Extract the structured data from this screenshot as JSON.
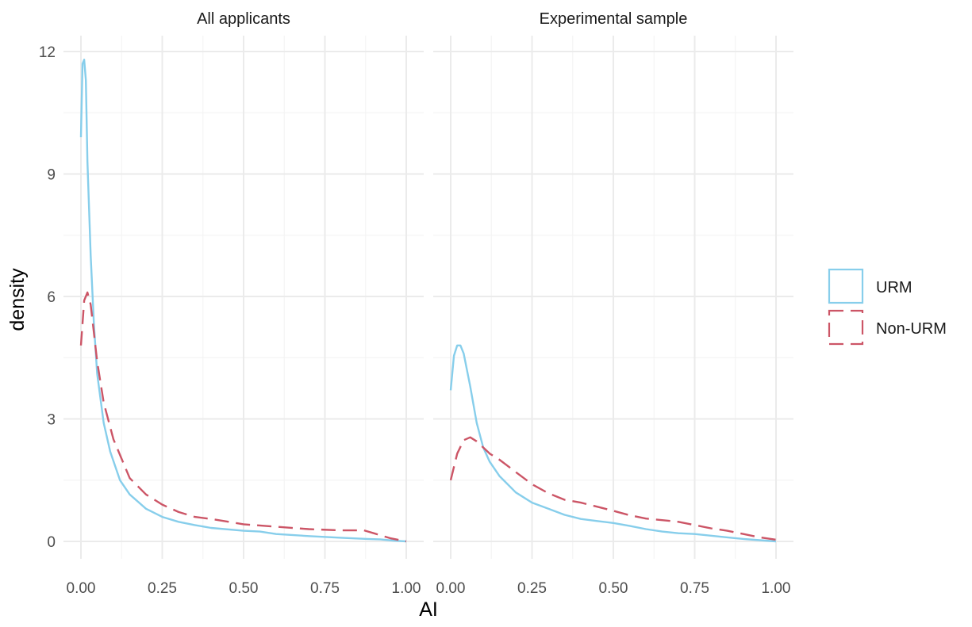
{
  "chart_data": {
    "type": "line",
    "xlabel": "AI",
    "ylabel": "density",
    "xlim": [
      0,
      1
    ],
    "ylim": [
      0,
      12
    ],
    "x_ticks": [
      "0.00",
      "0.25",
      "0.50",
      "0.75",
      "1.00"
    ],
    "y_ticks": [
      "0",
      "3",
      "6",
      "9",
      "12"
    ],
    "grid": true,
    "legend_position": "right",
    "legend": [
      {
        "name": "URM",
        "color": "#87CEEB",
        "dash": "solid"
      },
      {
        "name": "Non-URM",
        "color": "#CC5566",
        "dash": "dashed"
      }
    ],
    "panels": [
      {
        "title": "All applicants",
        "series": [
          {
            "name": "URM",
            "x": [
              0.0,
              0.005,
              0.01,
              0.015,
              0.02,
              0.03,
              0.04,
              0.05,
              0.07,
              0.09,
              0.12,
              0.15,
              0.2,
              0.25,
              0.3,
              0.35,
              0.4,
              0.5,
              0.55,
              0.6,
              0.7,
              0.8,
              0.88,
              0.92,
              0.96,
              1.0
            ],
            "y": [
              9.9,
              11.7,
              11.8,
              11.3,
              9.3,
              7.0,
              5.3,
              4.1,
              2.9,
              2.2,
              1.5,
              1.15,
              0.8,
              0.6,
              0.48,
              0.4,
              0.33,
              0.26,
              0.24,
              0.18,
              0.13,
              0.09,
              0.06,
              0.05,
              0.02,
              0.0
            ]
          },
          {
            "name": "Non-URM",
            "x": [
              0.0,
              0.01,
              0.02,
              0.03,
              0.04,
              0.05,
              0.07,
              0.1,
              0.15,
              0.2,
              0.25,
              0.3,
              0.35,
              0.4,
              0.5,
              0.6,
              0.7,
              0.8,
              0.87,
              0.9,
              0.95,
              1.0
            ],
            "y": [
              4.8,
              5.9,
              6.1,
              5.8,
              5.1,
              4.4,
              3.4,
              2.5,
              1.55,
              1.15,
              0.9,
              0.72,
              0.6,
              0.55,
              0.42,
              0.36,
              0.3,
              0.27,
              0.27,
              0.2,
              0.08,
              0.0
            ]
          }
        ]
      },
      {
        "title": "Experimental sample",
        "series": [
          {
            "name": "URM",
            "x": [
              0.0,
              0.01,
              0.02,
              0.03,
              0.04,
              0.06,
              0.08,
              0.1,
              0.12,
              0.15,
              0.2,
              0.25,
              0.3,
              0.35,
              0.4,
              0.45,
              0.5,
              0.55,
              0.6,
              0.65,
              0.7,
              0.75,
              0.8,
              0.85,
              0.9,
              0.95,
              1.0
            ],
            "y": [
              3.7,
              4.55,
              4.8,
              4.8,
              4.6,
              3.8,
              2.9,
              2.3,
              1.95,
              1.6,
              1.2,
              0.95,
              0.8,
              0.65,
              0.55,
              0.5,
              0.45,
              0.38,
              0.3,
              0.24,
              0.2,
              0.18,
              0.14,
              0.1,
              0.06,
              0.03,
              0.0
            ]
          },
          {
            "name": "Non-URM",
            "x": [
              0.0,
              0.02,
              0.04,
              0.06,
              0.08,
              0.1,
              0.12,
              0.15,
              0.2,
              0.25,
              0.3,
              0.35,
              0.4,
              0.45,
              0.5,
              0.55,
              0.6,
              0.65,
              0.7,
              0.75,
              0.8,
              0.85,
              0.9,
              0.95,
              1.0
            ],
            "y": [
              1.5,
              2.15,
              2.48,
              2.55,
              2.45,
              2.3,
              2.15,
              2.0,
              1.7,
              1.4,
              1.18,
              1.02,
              0.95,
              0.85,
              0.75,
              0.64,
              0.56,
              0.52,
              0.48,
              0.4,
              0.32,
              0.26,
              0.18,
              0.1,
              0.04
            ]
          }
        ]
      }
    ]
  }
}
